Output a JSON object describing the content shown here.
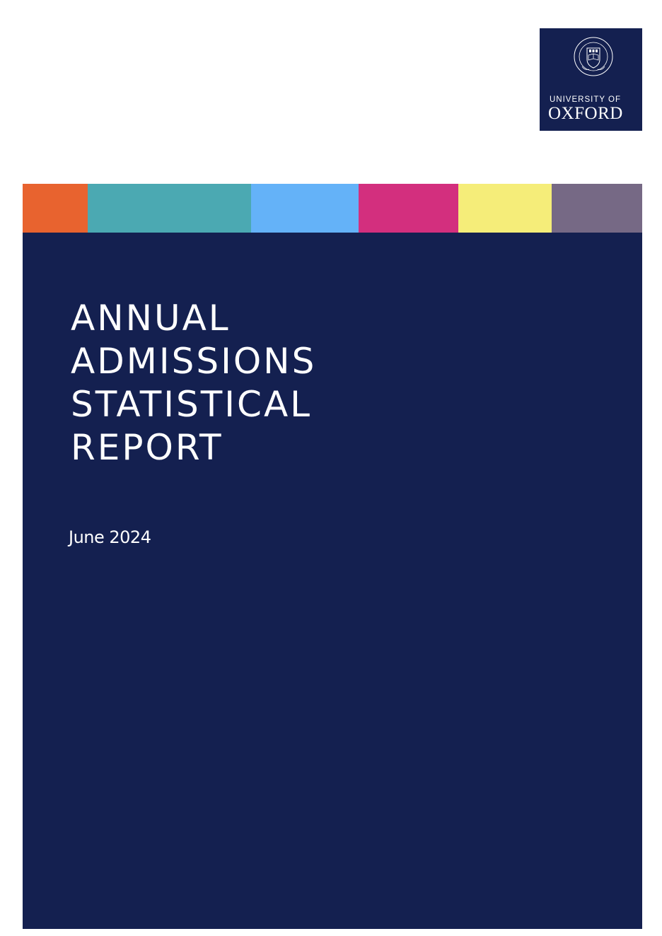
{
  "logo": {
    "line1": "UNIVERSITY OF",
    "line2": "OXFORD",
    "crest_icon": "university-crest-icon"
  },
  "colors": {
    "navy": "#142050",
    "stripe": [
      "#E8632F",
      "#4BA9B2",
      "#64B2F8",
      "#D32F7E",
      "#F5ED79",
      "#766985"
    ]
  },
  "cover": {
    "title_lines": [
      "ANNUAL",
      "ADMISSIONS",
      "STATISTICAL",
      "REPORT"
    ],
    "date": "June 2024"
  }
}
